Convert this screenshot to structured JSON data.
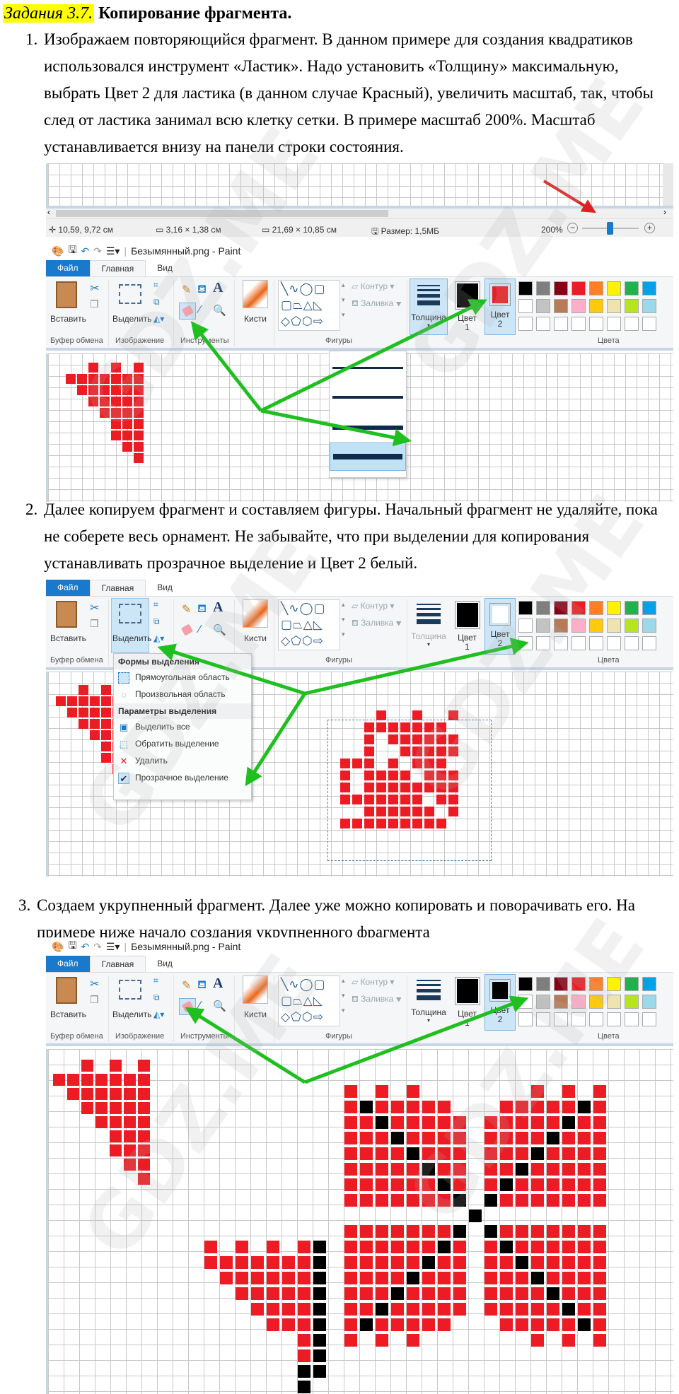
{
  "heading": {
    "label": "Задания 3.7.",
    "title": "Копирование фрагмента."
  },
  "steps": [
    {
      "num": "1.",
      "text": "Изображаем повторяющийся фрагмент. В данном примере для создания квадратиков использовался инструмент «Ластик». Надо установить «Толщину» максимальную, выбрать Цвет 2 для ластика (в данном случае Красный), увеличить масштаб, так, чтобы след от ластика занимал всю клетку сетки. В примере масштаб 200%. Масштаб устанавливается внизу на панели строки состояния."
    },
    {
      "num": "2.",
      "text": "Далее копируем фрагмент и составляем фигуры. Начальный фрагмент не удаляйте, пока не соберете весь орнамент. Не забывайте, что при выделении для копирования устанавливать прозрачное выделение и Цвет 2 белый."
    },
    {
      "num": "3.",
      "text": "Создаем укрупненный фрагмент. Далее уже можно копировать и поворачивать его. На примере ниже начало создания укрупненного фрагмента"
    }
  ],
  "statusbar": {
    "cursor": "10,59, 9,72 см",
    "selection": "3,16 × 1,38 см",
    "canvas": "21,69 × 10,85 см",
    "size": "Размер: 1,5МБ",
    "zoom": "200%",
    "zoom_level_percent": 200
  },
  "paint": {
    "window_title": "Безымянный.png - Paint",
    "tabs": {
      "file": "Файл",
      "home": "Главная",
      "view": "Вид"
    },
    "ribbon": {
      "paste": "Вставить",
      "select": "Выделить",
      "brushes": "Кисти",
      "outline": "Контур",
      "fill": "Заливка",
      "size": "Толщина",
      "color1": "Цвет",
      "color1_num": "1",
      "color2": "Цвет",
      "color2_num": "2",
      "groups": {
        "clipboard": "Буфер обмена",
        "image": "Изображение",
        "tools": "Инструменты",
        "shapes": "Фигуры",
        "colors": "Цвета"
      }
    },
    "palette": [
      "#000000",
      "#7f7f7f",
      "#880015",
      "#ed1c24",
      "#ff7f27",
      "#fff200",
      "#22b14c",
      "#00a2e8",
      "#ffffff",
      "#c3c3c3",
      "#b97a57",
      "#ffaec9",
      "#ffc90e",
      "#efe4b0",
      "#b5e61d",
      "#99d9ea"
    ],
    "screens": [
      {
        "color1": "#000000",
        "color2": "#ed1c24",
        "size_dropdown_open": true
      },
      {
        "color1": "#000000",
        "color2": "#ffffff",
        "select_menu_open": true
      },
      {
        "color1": "#000000",
        "color2": "#000000"
      }
    ]
  },
  "select_menu": {
    "shapes_header": "Формы выделения",
    "rect": "Прямоугольная область",
    "free": "Произвольная область",
    "options_header": "Параметры выделения",
    "select_all": "Выделить все",
    "invert": "Обратить выделение",
    "delete": "Удалить",
    "transparent": "Прозрачное выделение",
    "transparent_checked": true
  },
  "colors": {
    "highlight": "#ffff00",
    "arrow": "#1fbf1f",
    "red_arrow": "#e02020",
    "pixel_red": "#ed1c24",
    "pixel_black": "#000000",
    "accent": "#1979ca"
  },
  "watermark": "GDZ.ME"
}
